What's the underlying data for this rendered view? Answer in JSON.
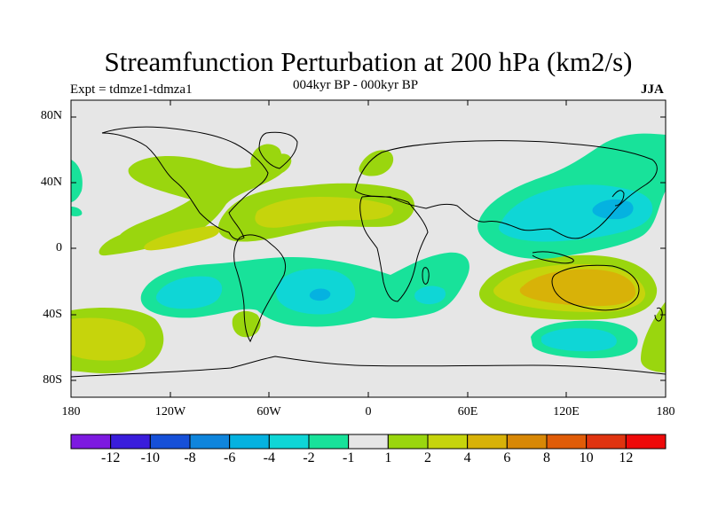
{
  "title": "Streamfunction Perturbation at 200 hPa (km2/s)",
  "subtitle_left": "Expt = tdmze1-tdmza1",
  "subtitle_center": "004kyr BP - 000kyr BP",
  "subtitle_right": "JJA",
  "lat_labels": [
    "80N",
    "40N",
    "0",
    "40S",
    "80S"
  ],
  "lon_labels": [
    "180",
    "120W",
    "60W",
    "0",
    "60E",
    "120E",
    "180"
  ],
  "colorbar": {
    "labels": [
      "-12",
      "-10",
      "-8",
      "-6",
      "-4",
      "-2",
      "-1",
      "1",
      "2",
      "4",
      "6",
      "8",
      "10",
      "12"
    ],
    "colors": [
      "#7d1ae0",
      "#3a1ddb",
      "#1650d8",
      "#0f85dc",
      "#05b2e0",
      "#0fd6d6",
      "#18e29a",
      "#e6e6e6",
      "#9ad60e",
      "#c6d40c",
      "#d8b208",
      "#d88806",
      "#e05c08",
      "#e03410",
      "#ee0a0a"
    ]
  },
  "palette": {
    "neutral": "#e6e6e6",
    "neg_1_2": "#18e29a",
    "neg_2_4": "#0fd6d6",
    "neg_4_6": "#05b2e0",
    "pos_1_2": "#9ad60e",
    "pos_2_4": "#c6d40c",
    "pos_4_6": "#d8b208"
  }
}
